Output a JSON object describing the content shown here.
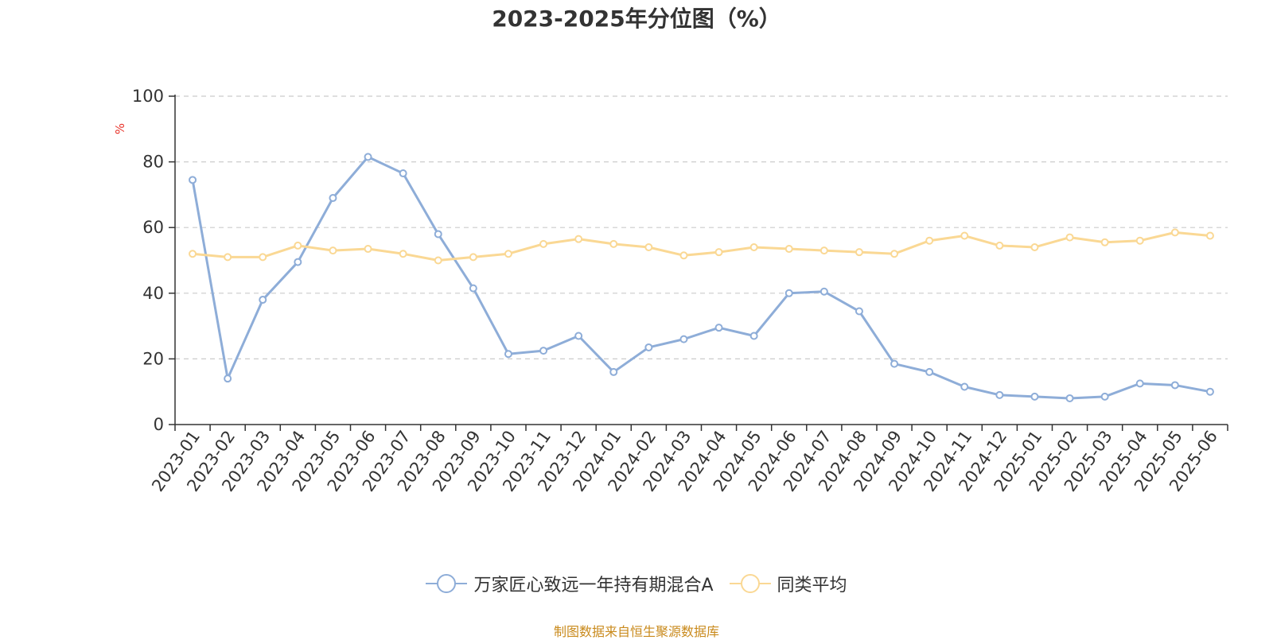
{
  "title": "2023-2025年分位图（%）",
  "footer": "制图数据来自恒生聚源数据库",
  "colors": {
    "series_a": "#8eadd8",
    "series_b": "#fad894",
    "unit": "#e8332a",
    "footer": "#c98a1c",
    "axis": "#333333",
    "grid": "#cccccc"
  },
  "chart_data": {
    "type": "line",
    "title": "2023-2025年分位图（%）",
    "xlabel": "",
    "ylabel": "%",
    "ylim": [
      0,
      100
    ],
    "yticks": [
      "0",
      "20",
      "40",
      "60",
      "80",
      "100"
    ],
    "grid": "horizontal dashed",
    "legend_position": "bottom-center",
    "categories": [
      "2023-01",
      "2023-02",
      "2023-03",
      "2023-04",
      "2023-05",
      "2023-06",
      "2023-07",
      "2023-08",
      "2023-09",
      "2023-10",
      "2023-11",
      "2023-12",
      "2024-01",
      "2024-02",
      "2024-03",
      "2024-04",
      "2024-05",
      "2024-06",
      "2024-07",
      "2024-08",
      "2024-09",
      "2024-10",
      "2024-11",
      "2024-12",
      "2025-01",
      "2025-02",
      "2025-03",
      "2025-04",
      "2025-05",
      "2025-06"
    ],
    "series": [
      {
        "name": "万家匠心致远一年持有期混合A",
        "color": "#8eadd8",
        "values": [
          74.5,
          14,
          38,
          49.5,
          69,
          81.5,
          76.5,
          58,
          41.5,
          21.5,
          22.5,
          27,
          16,
          23.5,
          26,
          29.5,
          27,
          40,
          40.5,
          34.5,
          18.5,
          16,
          11.5,
          9,
          8.5,
          8,
          8.5,
          12.5,
          12,
          10
        ]
      },
      {
        "name": "同类平均",
        "color": "#fad894",
        "values": [
          52,
          51,
          51,
          54.5,
          53,
          53.5,
          52,
          50,
          51,
          52,
          55,
          56.5,
          55,
          54,
          51.5,
          52.5,
          54,
          53.5,
          53,
          52.5,
          52,
          56,
          57.5,
          54.5,
          54,
          57,
          55.5,
          56,
          58.5,
          57.5
        ]
      }
    ]
  }
}
